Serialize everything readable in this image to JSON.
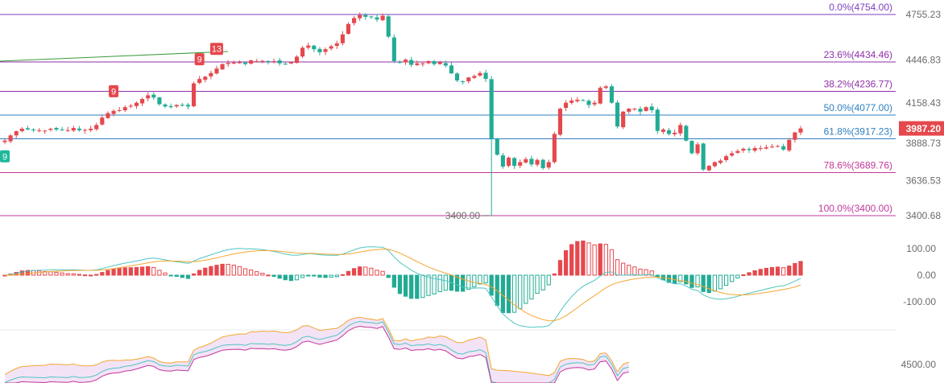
{
  "chart_data": [
    {
      "type": "candlestick",
      "price_axis": {
        "ticks": [
          "4755.23",
          "4446.83",
          "4158.43",
          "3888.73",
          "3636.53",
          "3400.68"
        ],
        "ylim": [
          3380,
          4775
        ]
      },
      "last_price": {
        "label": "3987.20",
        "value": 3987.2,
        "color": "#e5484d"
      },
      "fib_levels": [
        {
          "label": "0.0%(4754.00)",
          "value": 4754.0,
          "color": "#7b3fbf"
        },
        {
          "label": "23.6%(4434.46)",
          "value": 4434.46,
          "color": "#8e2fa8"
        },
        {
          "label": "38.2%(4236.77)",
          "value": 4236.77,
          "color": "#8e2fa8"
        },
        {
          "label": "50.0%(4077.00)",
          "value": 4077.0,
          "color": "#2f7fbf"
        },
        {
          "label": "61.8%(3917.23)",
          "value": 3917.23,
          "color": "#2f7fbf"
        },
        {
          "label": "78.6%(3689.76)",
          "value": 3689.76,
          "color": "#c2389a"
        },
        {
          "label": "100.0%(3400.00)",
          "value": 3400.0,
          "color": "#c2389a"
        }
      ],
      "low_annotation": {
        "label": "3400.00",
        "value": 3400.0
      },
      "markers": [
        {
          "label": "9",
          "index": 0,
          "kind": "buy",
          "color": "#1fb89b"
        },
        {
          "label": "9",
          "index": 19,
          "kind": "sell",
          "color": "#e5484d"
        },
        {
          "label": "9",
          "index": 34,
          "kind": "sell",
          "color": "#e5484d"
        },
        {
          "label": "13",
          "index": 37,
          "kind": "sell",
          "color": "#e5484d"
        }
      ],
      "close": [
        3905,
        3940,
        3968,
        3985,
        3980,
        3978,
        3975,
        3972,
        3985,
        3980,
        3978,
        3976,
        3990,
        3975,
        3978,
        3985,
        4010,
        4060,
        4090,
        4105,
        4110,
        4130,
        4140,
        4160,
        4185,
        4210,
        4195,
        4150,
        4135,
        4130,
        4145,
        4140,
        4135,
        4290,
        4320,
        4335,
        4360,
        4390,
        4420,
        4428,
        4430,
        4432,
        4420,
        4445,
        4440,
        4442,
        4435,
        4440,
        4425,
        4420,
        4432,
        4470,
        4530,
        4545,
        4520,
        4500,
        4520,
        4540,
        4560,
        4620,
        4690,
        4730,
        4750,
        4738,
        4735,
        4720,
        4745,
        4605,
        4440,
        4430,
        4450,
        4415,
        4425,
        4425,
        4440,
        4420,
        4432,
        4410,
        4358,
        4310,
        4300,
        4330,
        4340,
        4360,
        4320,
        3920,
        3810,
        3730,
        3790,
        3735,
        3760,
        3780,
        3745,
        3775,
        3720,
        3760,
        3950,
        4120,
        4160,
        4175,
        4180,
        4175,
        4145,
        4160,
        4260,
        4270,
        4160,
        4000,
        4100,
        4120,
        4120,
        4100,
        4130,
        4110,
        3970,
        3980,
        3950,
        3958,
        4010,
        3905,
        3820,
        3880,
        3710,
        3735,
        3760,
        3770,
        3800,
        3820,
        3835,
        3850,
        3842,
        3855,
        3855,
        3860,
        3865,
        3868,
        3845,
        3910,
        3960,
        3987
      ],
      "macd": {
        "range": [
          -190,
          145
        ],
        "ticks": [
          100,
          0,
          -100
        ],
        "tick_labels": [
          "100.00",
          "0.00",
          "-100.00"
        ]
      },
      "lower_pane": {
        "tick_labels": [
          "4500.00"
        ],
        "value": 4500
      }
    }
  ]
}
